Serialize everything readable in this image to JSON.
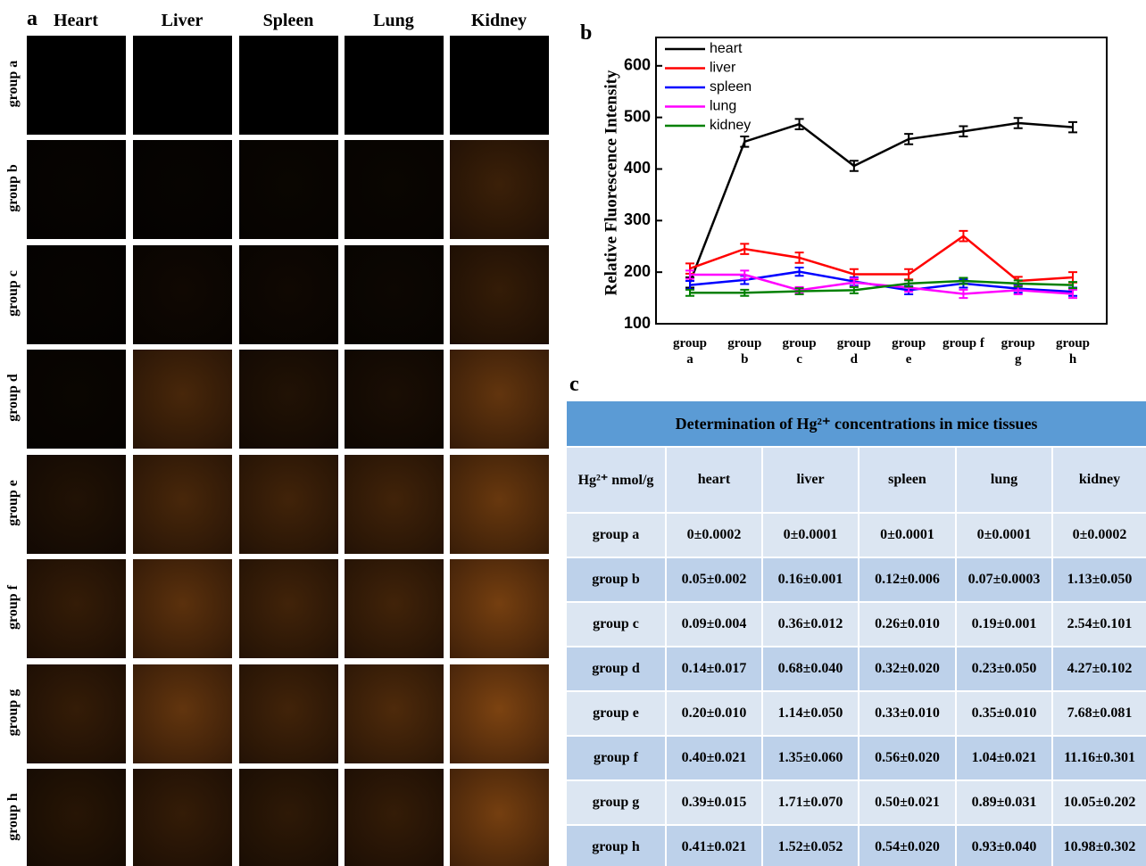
{
  "panel_labels": {
    "a": "a",
    "b": "b",
    "c": "c"
  },
  "panel_a": {
    "columns": [
      "Heart",
      "Liver",
      "Spleen",
      "Lung",
      "Kidney"
    ],
    "rows": [
      "group a",
      "group b",
      "group c",
      "group d",
      "group e",
      "group f",
      "group g",
      "group h"
    ]
  },
  "chart_data": {
    "type": "line",
    "y_label": "Relative Fluorescence Intensity",
    "categories": [
      "group a",
      "group b",
      "group c",
      "group d",
      "group e",
      "group f",
      "group g",
      "group h"
    ],
    "series": [
      {
        "name": "heart",
        "color": "#000000",
        "values": [
          180,
          453,
          487,
          406,
          458,
          473,
          489,
          481
        ],
        "errors": [
          10,
          10,
          10,
          10,
          10,
          10,
          10,
          10
        ]
      },
      {
        "name": "liver",
        "color": "#ff0000",
        "values": [
          207,
          245,
          228,
          196,
          196,
          270,
          183,
          190
        ],
        "errors": [
          10,
          10,
          10,
          10,
          10,
          10,
          8,
          10
        ]
      },
      {
        "name": "spleen",
        "color": "#0000ff",
        "values": [
          175,
          185,
          201,
          182,
          165,
          178,
          168,
          162
        ],
        "errors": [
          8,
          8,
          8,
          8,
          8,
          8,
          8,
          8
        ]
      },
      {
        "name": "lung",
        "color": "#ff00ff",
        "values": [
          195,
          195,
          165,
          180,
          170,
          158,
          165,
          158
        ],
        "errors": [
          8,
          8,
          6,
          8,
          8,
          8,
          8,
          8
        ]
      },
      {
        "name": "kidney",
        "color": "#008000",
        "values": [
          160,
          160,
          163,
          165,
          178,
          183,
          178,
          175
        ],
        "errors": [
          6,
          6,
          6,
          6,
          6,
          6,
          6,
          6
        ]
      }
    ],
    "ylim": [
      100,
      655
    ],
    "yticks": [
      100,
      200,
      300,
      400,
      500,
      600
    ],
    "legend": "top-left"
  },
  "table": {
    "title": "Determination of Hg²⁺ concentrations in mice tissues",
    "header": [
      "Hg²⁺ nmol/g",
      "heart",
      "liver",
      "spleen",
      "lung",
      "kidney"
    ],
    "rows": [
      [
        "group a",
        "0±0.0002",
        "0±0.0001",
        "0±0.0001",
        "0±0.0001",
        "0±0.0002"
      ],
      [
        "group b",
        "0.05±0.002",
        "0.16±0.001",
        "0.12±0.006",
        "0.07±0.0003",
        "1.13±0.050"
      ],
      [
        "group c",
        "0.09±0.004",
        "0.36±0.012",
        "0.26±0.010",
        "0.19±0.001",
        "2.54±0.101"
      ],
      [
        "group d",
        "0.14±0.017",
        "0.68±0.040",
        "0.32±0.020",
        "0.23±0.050",
        "4.27±0.102"
      ],
      [
        "group e",
        "0.20±0.010",
        "1.14±0.050",
        "0.33±0.010",
        "0.35±0.010",
        "7.68±0.081"
      ],
      [
        "group f",
        "0.40±0.021",
        "1.35±0.060",
        "0.56±0.020",
        "1.04±0.021",
        "11.16±0.301"
      ],
      [
        "group g",
        "0.39±0.015",
        "1.71±0.070",
        "0.50±0.021",
        "0.89±0.031",
        "10.05±0.202"
      ],
      [
        "group h",
        "0.41±0.021",
        "1.52±0.052",
        "0.54±0.020",
        "0.93±0.040",
        "10.98±0.302"
      ]
    ]
  }
}
